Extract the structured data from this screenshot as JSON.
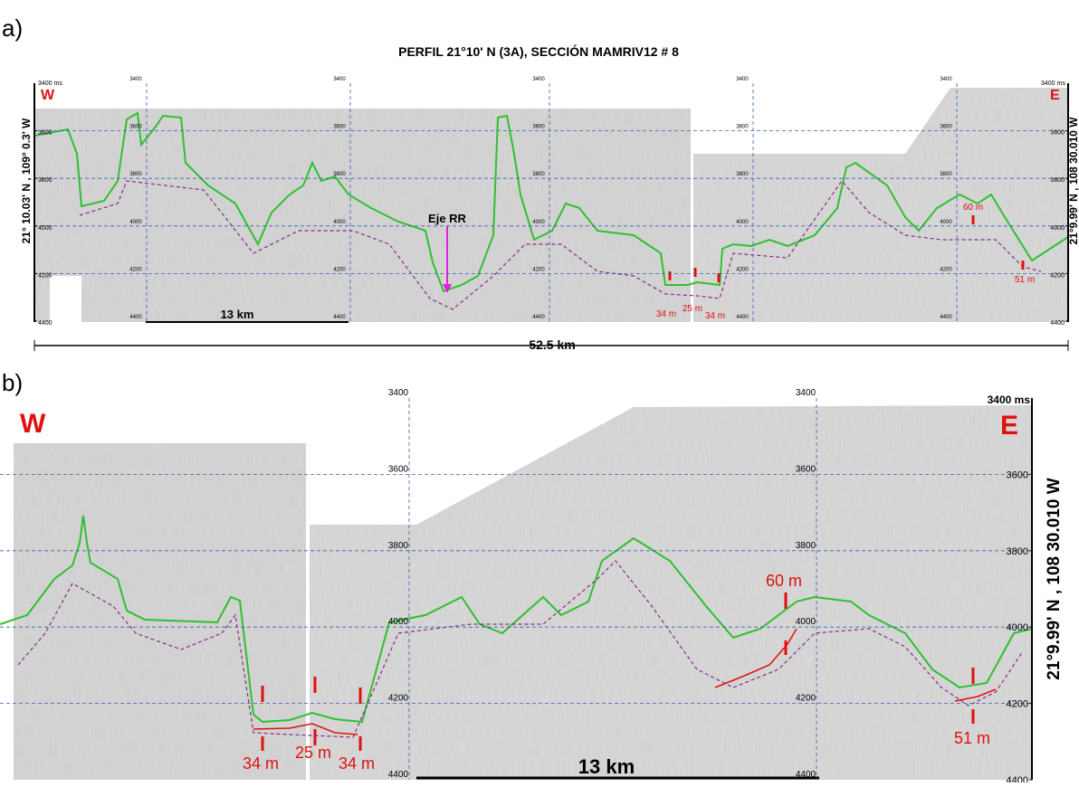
{
  "panel_a": {
    "label": "a)",
    "title": "PERFIL 21°10' N (3A), SECCIÓN MAMRIV12 # 8",
    "west": "W",
    "east": "E",
    "top_label": "3400 ms",
    "left_coord": "21° 10.03' N , 109° 0.3' W",
    "right_coord": "21°9.99' N , 108 30.010 W",
    "depth_ticks": [
      3400,
      3600,
      3800,
      4000,
      4200,
      4400
    ],
    "axis_label": "Eje RR",
    "scale_bar": "13 km",
    "total_length": "52.5 km",
    "thickness_labels": [
      "34 m",
      "25 m",
      "34 m",
      "60 m",
      "51 m"
    ]
  },
  "panel_b": {
    "label": "b)",
    "west": "W",
    "east": "E",
    "top_label": "3400 ms",
    "right_coord": "21°9.99' N , 108 30.010 W",
    "depth_ticks": [
      3400,
      3600,
      3800,
      4000,
      4200,
      4400
    ],
    "scale_bar": "13 km",
    "thickness_labels": [
      "34 m",
      "25 m",
      "34 m",
      "60 m",
      "51 m"
    ]
  }
}
